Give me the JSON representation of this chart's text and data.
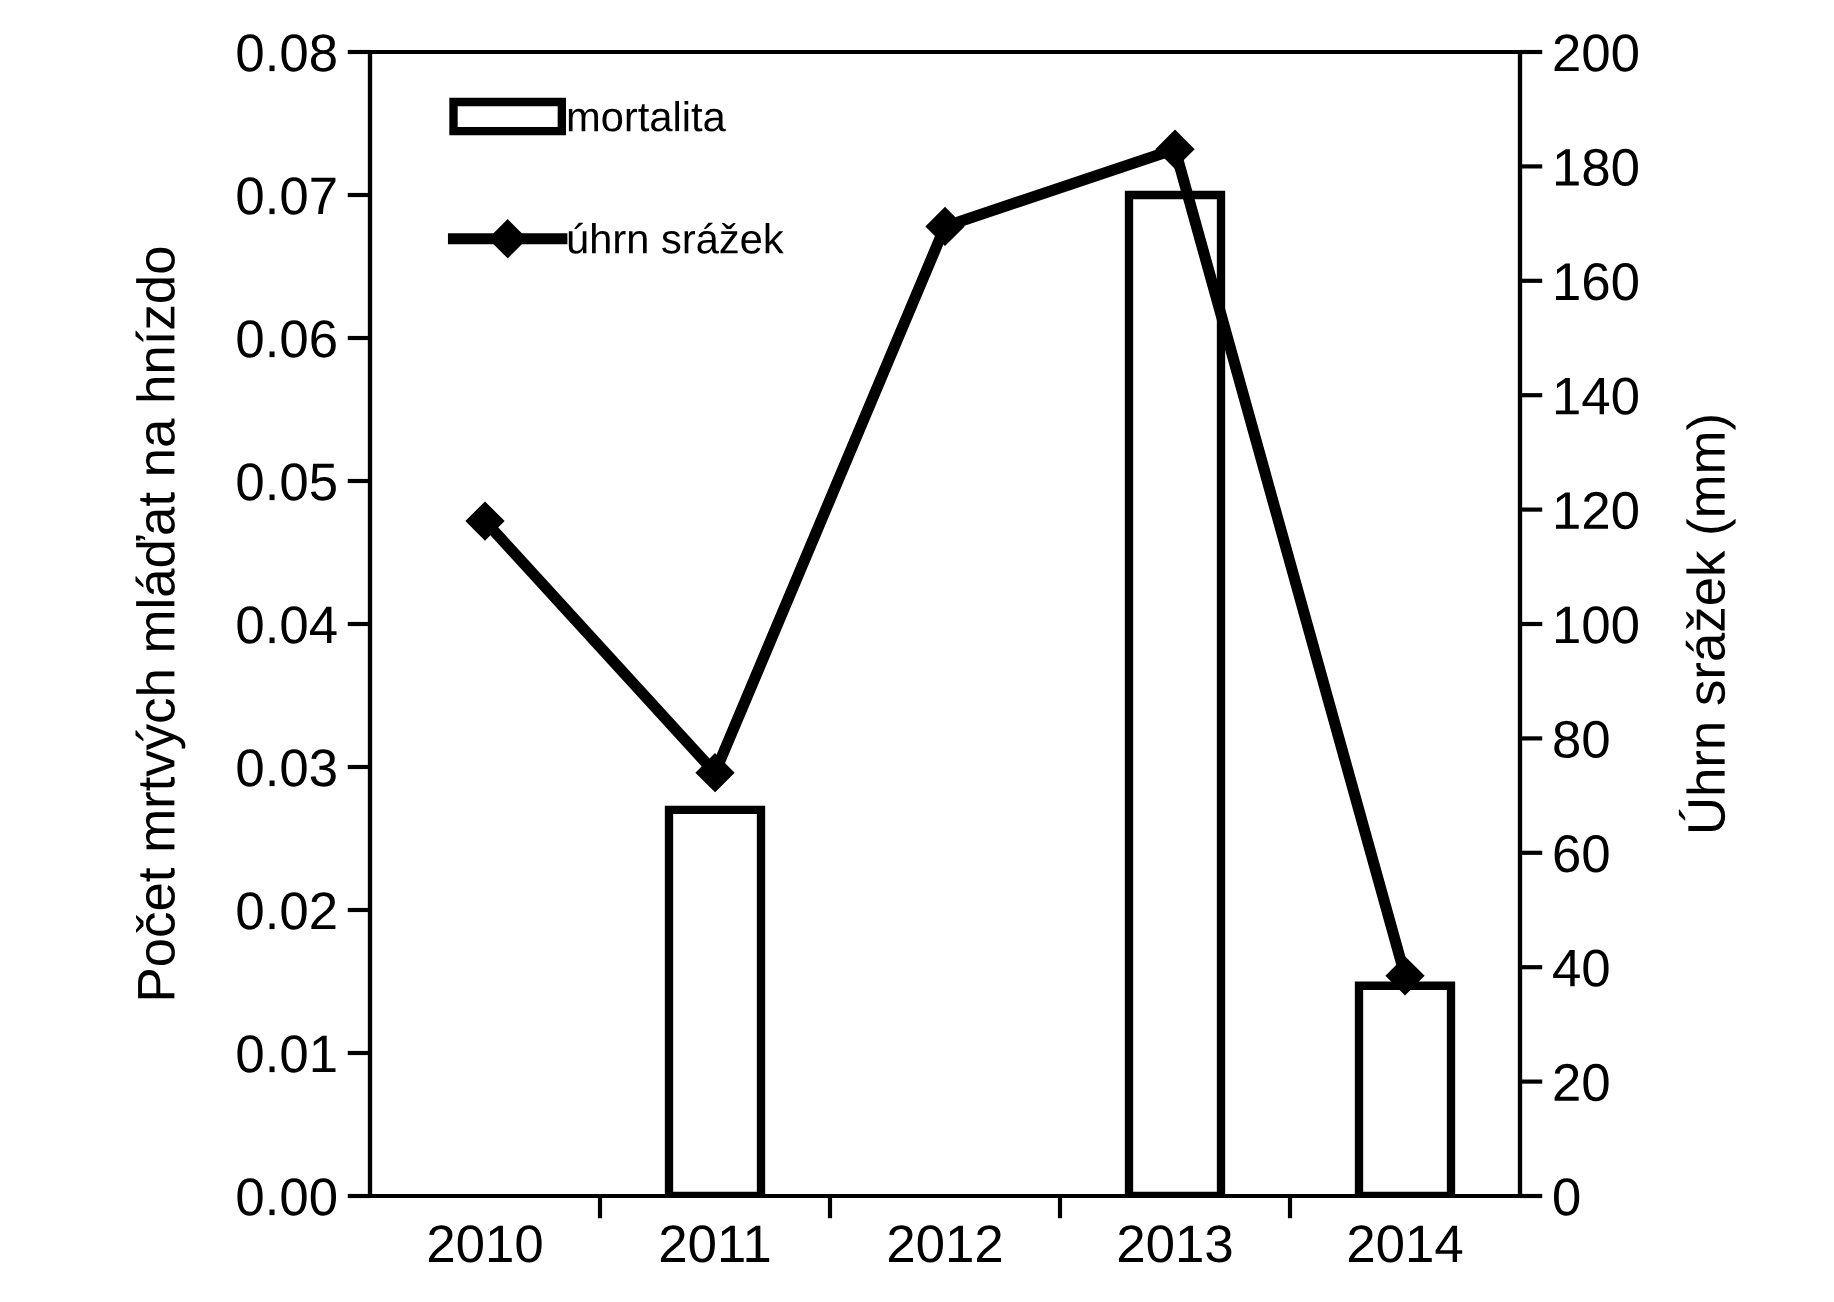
{
  "chart_data": {
    "type": "bar",
    "categories": [
      "2010",
      "2011",
      "2012",
      "2013",
      "2014"
    ],
    "ylabel": "Počet mrtvých mláďat na hnízdo",
    "y2label": "Úhrn srážek (mm)",
    "ylim": [
      0,
      0.08
    ],
    "yticks": [
      {
        "value": 0,
        "label": "0.00"
      },
      {
        "value": 0.01,
        "label": "0.01"
      },
      {
        "value": 0.02,
        "label": "0.02"
      },
      {
        "value": 0.03,
        "label": "0.03"
      },
      {
        "value": 0.04,
        "label": "0.04"
      },
      {
        "value": 0.05,
        "label": "0.05"
      },
      {
        "value": 0.06,
        "label": "0.06"
      },
      {
        "value": 0.07,
        "label": "0.07"
      },
      {
        "value": 0.08,
        "label": "0.08"
      }
    ],
    "y2lim": [
      0,
      200
    ],
    "y2ticks": [
      0,
      20,
      40,
      60,
      80,
      100,
      120,
      140,
      160,
      180,
      200
    ],
    "legend": "top left",
    "grid": false,
    "series": [
      {
        "name": "mortalita",
        "color": "#ffffff",
        "values": [
          null,
          0.027,
          null,
          0.07,
          0.0147
        ]
      },
      {
        "name": "úhrn srážek",
        "type": "line",
        "axis": "y2",
        "color": "#000000",
        "marker": "diamond",
        "values": [
          118,
          74,
          169.5,
          183,
          38.5
        ]
      }
    ]
  }
}
